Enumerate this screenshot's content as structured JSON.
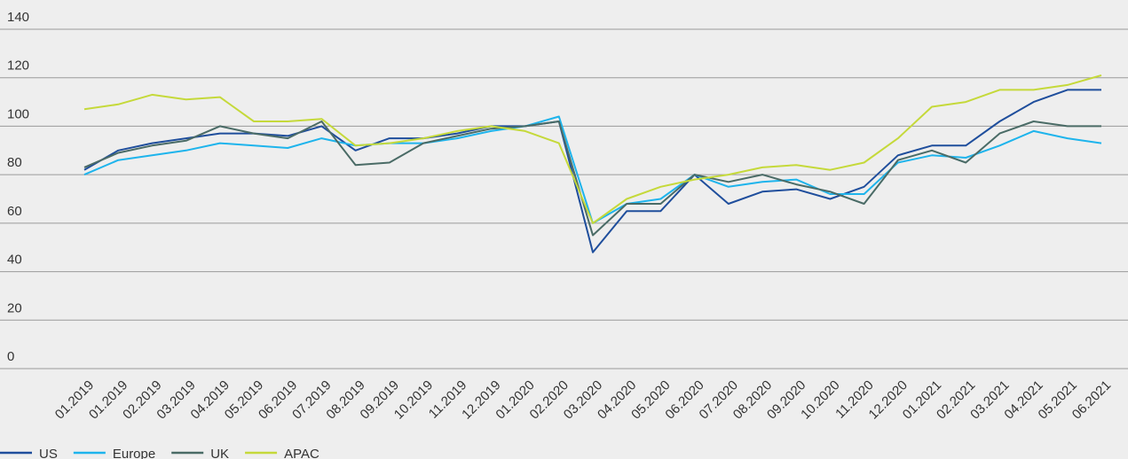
{
  "chart_data": {
    "type": "line",
    "categories": [
      "01.2019",
      "01.2019",
      "02.2019",
      "03.2019",
      "04.2019",
      "05.2019",
      "06.2019",
      "07.2019",
      "08.2019",
      "09.2019",
      "10.2019",
      "11.2019",
      "12.2019",
      "01.2020",
      "02.2020",
      "03.2020",
      "04.2020",
      "05.2020",
      "06.2020",
      "07.2020",
      "08.2020",
      "09.2020",
      "10.2020",
      "11.2020",
      "12.2020",
      "01.2021",
      "02.2021",
      "03.2021",
      "04.2021",
      "05.2021",
      "06.2021"
    ],
    "series": [
      {
        "name": "US",
        "color": "#1f4e9c",
        "values": [
          82,
          90,
          93,
          95,
          97,
          97,
          96,
          100,
          90,
          95,
          95,
          97,
          100,
          100,
          102,
          48,
          65,
          65,
          80,
          68,
          73,
          74,
          70,
          75,
          88,
          92,
          92,
          102,
          110,
          115,
          115
        ]
      },
      {
        "name": "Europe",
        "color": "#1eb4ec",
        "values": [
          80,
          86,
          88,
          90,
          93,
          92,
          91,
          95,
          92,
          93,
          93,
          95,
          98,
          100,
          104,
          60,
          68,
          70,
          80,
          75,
          77,
          78,
          72,
          72,
          85,
          88,
          87,
          92,
          98,
          95,
          93
        ]
      },
      {
        "name": "UK",
        "color": "#4a6b66",
        "values": [
          83,
          89,
          92,
          94,
          100,
          97,
          95,
          102,
          84,
          85,
          93,
          96,
          99,
          100,
          102,
          55,
          68,
          68,
          80,
          77,
          80,
          76,
          73,
          68,
          86,
          90,
          85,
          97,
          102,
          100,
          100
        ]
      },
      {
        "name": "APAC",
        "color": "#c5d93a",
        "values": [
          107,
          109,
          113,
          111,
          112,
          102,
          102,
          103,
          92,
          93,
          95,
          98,
          100,
          98,
          93,
          60,
          70,
          75,
          78,
          80,
          83,
          84,
          82,
          85,
          95,
          108,
          110,
          115,
          115,
          117,
          121
        ]
      }
    ],
    "ylim": [
      0,
      140
    ],
    "yticks": [
      0,
      20,
      40,
      60,
      80,
      100,
      120,
      140
    ],
    "grid": true,
    "legend": "bottom-left"
  }
}
